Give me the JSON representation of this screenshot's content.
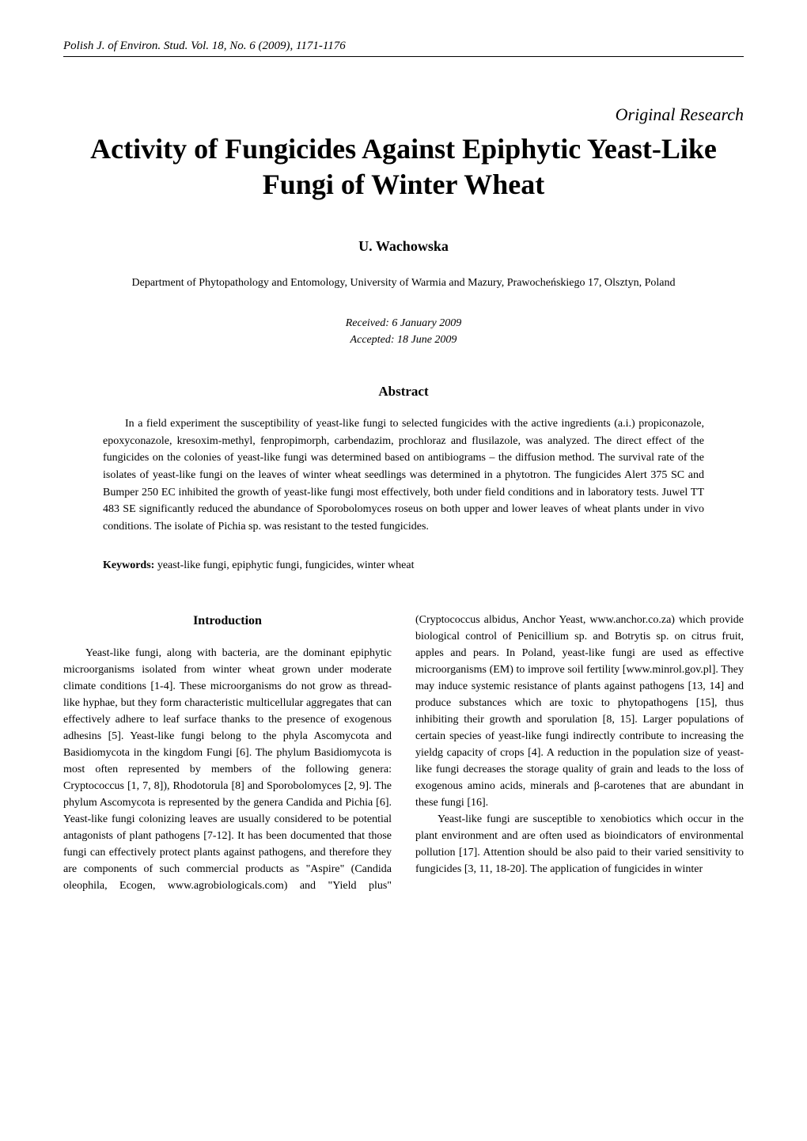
{
  "journalLine": "Polish J. of Environ. Stud. Vol. 18, No. 6 (2009), 1171-1176",
  "originalResearch": "Original Research",
  "title": "Activity of Fungicides Against Epiphytic Yeast-Like Fungi of Winter Wheat",
  "author": "U. Wachowska",
  "affiliation": "Department of Phytopathology and Entomology, University of Warmia and Mazury,\nPrawocheńskiego 17, Olsztyn, Poland",
  "received": "Received: 6 January 2009",
  "accepted": "Accepted: 18 June 2009",
  "abstractHeading": "Abstract",
  "abstractBody": "In a field experiment the susceptibility of yeast-like fungi to selected fungicides with the active ingredients (a.i.) propiconazole, epoxyconazole, kresoxim-methyl, fenpropimorph, carbendazim, prochloraz and flusilazole, was analyzed. The direct effect of the fungicides on the colonies of yeast-like fungi was determined based on antibiograms – the diffusion method. The survival rate of the isolates of yeast-like fungi on the leaves of winter wheat seedlings was determined in a phytotron. The fungicides Alert 375 SC and Bumper 250 EC inhibited the  growth of yeast-like fungi most effectively, both under field conditions and in laboratory tests. Juwel TT 483 SE significantly reduced the abundance of Sporobolomyces roseus on both upper and lower leaves of wheat plants  under in vivo conditions. The isolate of Pichia sp. was resistant to the tested fungicides.",
  "keywordsLabel": "Keywords:",
  "keywordsText": " yeast-like fungi, epiphytic fungi, fungicides, winter wheat",
  "introHeading": "Introduction",
  "introPara1": "Yeast-like fungi, along with bacteria, are the dominant epiphytic microorganisms isolated from winter wheat grown under moderate climate conditions [1-4]. These microorganisms do not grow as thread-like hyphae, but they form characteristic multicellular aggregates that can effectively adhere to leaf surface thanks to the presence of exogenous adhesins [5]. Yeast-like fungi belong to the phyla Ascomycota and Basidiomycota in the kingdom Fungi [6]. The phylum Basidiomycota is most often represented by members of the following genera: Cryptococcus [1, 7, 8]), Rhodotorula [8] and Sporobolomyces [2, 9]. The phylum Ascomycota is represented by the genera Candida and Pichia [6]. Yeast-like fungi colonizing leaves are usually considered to be potential antagonists of plant pathogens [7-12]. It has been documented that those fungi can effectively protect plants against pathogens, and therefore they are components of such commercial products as \"Aspire\" (Candida oleophila, Ecogen, www.agrobiologicals.com) and \"Yield plus\" (Cryptococcus albidus, Anchor Yeast, www.anchor.co.za) which provide biological control of Penicillium sp. and Botrytis sp. on citrus fruit, apples and pears. In Poland, yeast-like fungi are used as effective microorganisms (EM) to improve soil fertility [www.minrol.gov.pl]. They may induce systemic resistance of plants against pathogens [13, 14] and produce substances which are toxic to phytopathogens [15], thus inhibiting their growth and sporulation [8, 15]. Larger populations of certain species of yeast-like fungi indirectly contribute to increasing the yieldg capacity of crops [4]. A reduction in the population size of yeast-like fungi decreases the storage quality of grain and leads to the loss of exogenous amino acids, minerals and β-carotenes that are abundant in these fungi [16].",
  "introPara2": "Yeast-like fungi are susceptible to xenobiotics which occur in the plant environment and are often used as bioindicators of environmental pollution [17]. Attention should be also paid to their varied sensitivity to fungicides [3, 11, 18-20]. The application of fungicides in winter"
}
